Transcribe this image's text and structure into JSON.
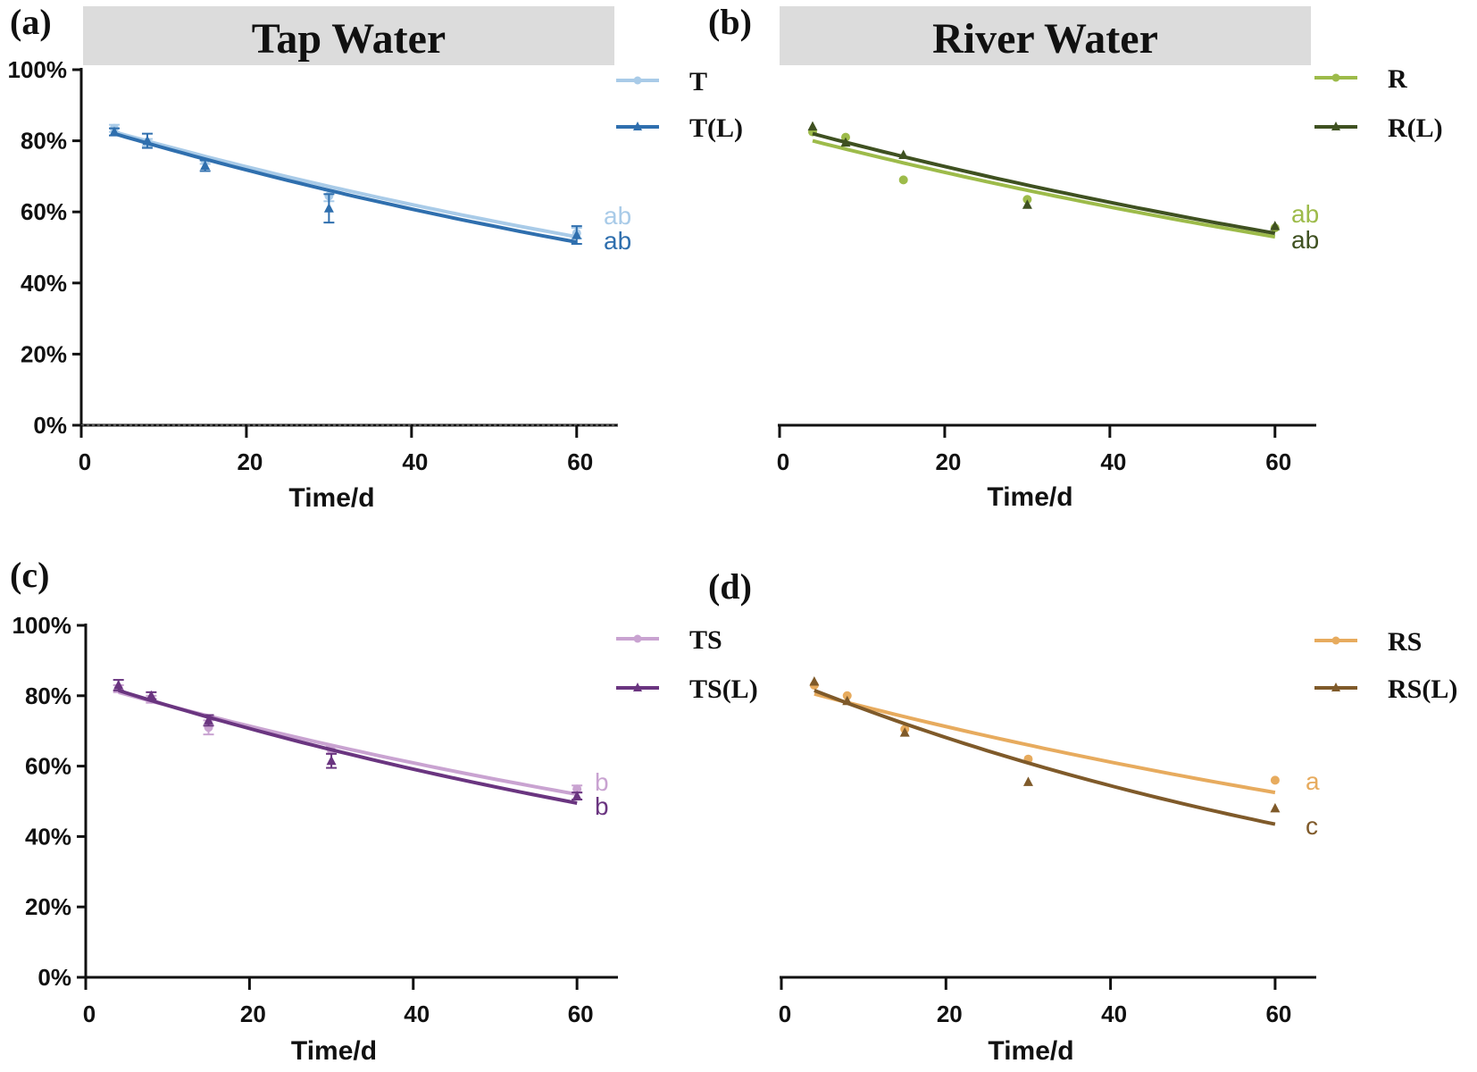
{
  "figure": {
    "panels": [
      {
        "letter": "(a)",
        "header": "Tap Water",
        "show_y_axis": true,
        "xlabel": "Time/d",
        "chart_data": {
          "type": "line",
          "title": "Tap Water",
          "xlabel": "Time/d",
          "ylabel": "",
          "xlim": [
            0,
            65
          ],
          "ylim": [
            0,
            100
          ],
          "x_ticks": [
            "0",
            "20",
            "40",
            "60"
          ],
          "y_ticks": [
            "0%",
            "20%",
            "40%",
            "60%",
            "80%",
            "100%"
          ],
          "legend_position": "top-right",
          "series": [
            {
              "name": "T",
              "color": "#a9cbe8",
              "marker": "circle",
              "x": [
                4,
                8,
                15,
                30,
                60
              ],
              "values": [
                83.5,
                79.5,
                74.5,
                64.5,
                54
              ],
              "errors": [
                1,
                1,
                1,
                1.5,
                1.5
              ],
              "fit": [
                82.5,
                53
              ],
              "significance": "ab"
            },
            {
              "name": "T(L)",
              "color": "#2f6fae",
              "marker": "triangle",
              "x": [
                4,
                8,
                15,
                30,
                60
              ],
              "values": [
                82.5,
                80,
                73,
                61,
                53.5
              ],
              "errors": [
                1,
                2,
                1.5,
                4,
                2.5
              ],
              "fit": [
                82,
                51.5
              ],
              "significance": "ab"
            }
          ]
        }
      },
      {
        "letter": "(b)",
        "header": "River Water",
        "show_y_axis": false,
        "xlabel": "Time/d",
        "chart_data": {
          "type": "line",
          "title": "River Water",
          "xlabel": "Time/d",
          "ylabel": "",
          "xlim": [
            0,
            65
          ],
          "ylim": [
            0,
            100
          ],
          "x_ticks": [
            "0",
            "20",
            "40",
            "60"
          ],
          "y_ticks": [],
          "legend_position": "top-right",
          "series": [
            {
              "name": "R",
              "color": "#9dbb4a",
              "marker": "circle",
              "x": [
                4,
                8,
                15,
                30,
                60
              ],
              "values": [
                82.5,
                81,
                69,
                63.5,
                55.5
              ],
              "errors": [
                0,
                0,
                0,
                0,
                0
              ],
              "fit": [
                80,
                53
              ],
              "significance": "ab"
            },
            {
              "name": "R(L)",
              "color": "#3f5121",
              "marker": "triangle",
              "x": [
                4,
                8,
                15,
                30,
                60
              ],
              "values": [
                84,
                79.5,
                76,
                62,
                56
              ],
              "errors": [
                0,
                0,
                0,
                0,
                0
              ],
              "fit": [
                82,
                54
              ],
              "significance": "ab"
            }
          ]
        }
      },
      {
        "letter": "(c)",
        "header": "",
        "show_y_axis": true,
        "xlabel": "Time/d",
        "chart_data": {
          "type": "line",
          "title": "",
          "xlabel": "Time/d",
          "ylabel": "",
          "xlim": [
            0,
            65
          ],
          "ylim": [
            0,
            100
          ],
          "x_ticks": [
            "0",
            "20",
            "40",
            "60"
          ],
          "y_ticks": [
            "0%",
            "20%",
            "40%",
            "60%",
            "80%",
            "100%"
          ],
          "legend_position": "top-right",
          "series": [
            {
              "name": "TS",
              "color": "#c9a3d1",
              "marker": "circle",
              "x": [
                4,
                8,
                15,
                30,
                60
              ],
              "values": [
                82,
                79,
                71,
                64.5,
                53.5
              ],
              "errors": [
                1,
                1,
                2,
                1,
                1
              ],
              "fit": [
                81,
                52
              ],
              "significance": "b"
            },
            {
              "name": "TS(L)",
              "color": "#6a3580",
              "marker": "triangle",
              "x": [
                4,
                8,
                15,
                30,
                60
              ],
              "values": [
                83,
                80,
                73,
                61.5,
                51.5
              ],
              "errors": [
                1.5,
                1,
                1.5,
                2,
                1
              ],
              "fit": [
                81.5,
                49.5
              ],
              "significance": "b"
            }
          ]
        }
      },
      {
        "letter": "(d)",
        "header": "",
        "show_y_axis": false,
        "xlabel": "Time/d",
        "chart_data": {
          "type": "line",
          "title": "",
          "xlabel": "Time/d",
          "ylabel": "",
          "xlim": [
            0,
            65
          ],
          "ylim": [
            0,
            100
          ],
          "x_ticks": [
            "0",
            "20",
            "40",
            "60"
          ],
          "y_ticks": [],
          "legend_position": "top-right",
          "series": [
            {
              "name": "RS",
              "color": "#e7ab5e",
              "marker": "circle",
              "x": [
                4,
                8,
                15,
                30,
                60
              ],
              "values": [
                83,
                80,
                70.5,
                62,
                56
              ],
              "errors": [
                0,
                0,
                0,
                0,
                0
              ],
              "fit": [
                80.5,
                52.5
              ],
              "significance": "a"
            },
            {
              "name": "RS(L)",
              "color": "#7f5a2a",
              "marker": "triangle",
              "x": [
                4,
                8,
                15,
                30,
                60
              ],
              "values": [
                84,
                78.5,
                69.5,
                55.5,
                48
              ],
              "errors": [
                0,
                0,
                0,
                0,
                0
              ],
              "fit": [
                81.5,
                43.5
              ],
              "significance": "c"
            }
          ]
        }
      }
    ]
  }
}
